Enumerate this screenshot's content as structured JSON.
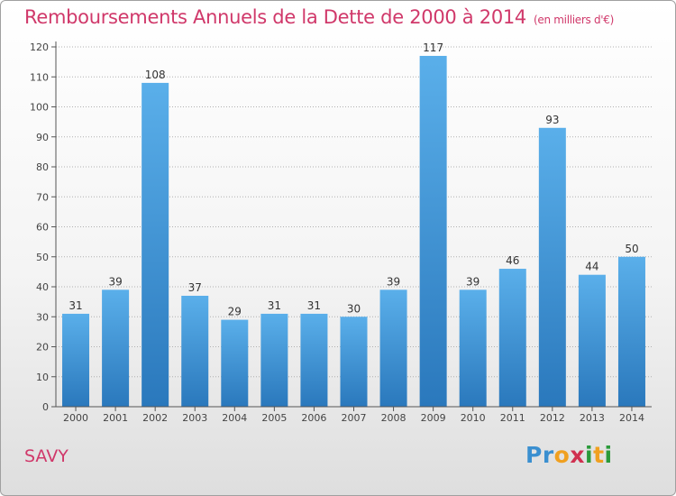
{
  "header": {
    "title": "Remboursements Annuels de la Dette de 2000 à 2014",
    "unit": "(en milliers d'€)"
  },
  "footer": {
    "place": "SAVY",
    "logo_letters": [
      "P",
      "r",
      "o",
      "x",
      "i",
      "t",
      "i"
    ]
  },
  "colors": {
    "bar_top": "#5aafea",
    "bar_bottom": "#2a78bc",
    "title": "#d0386a",
    "grid": "#b0b0b0"
  },
  "chart_data": {
    "type": "bar",
    "title": "Remboursements Annuels de la Dette de 2000 à 2014",
    "xlabel": "",
    "ylabel": "",
    "categories": [
      "2000",
      "2001",
      "2002",
      "2003",
      "2004",
      "2005",
      "2006",
      "2007",
      "2008",
      "2009",
      "2010",
      "2011",
      "2012",
      "2013",
      "2014"
    ],
    "values": [
      31,
      39,
      108,
      37,
      29,
      31,
      31,
      30,
      39,
      117,
      39,
      46,
      93,
      44,
      50
    ],
    "ylim": [
      0,
      120
    ],
    "yticks": [
      0,
      10,
      20,
      30,
      40,
      50,
      60,
      70,
      80,
      90,
      100,
      110,
      120
    ],
    "grid": "horizontal dotted",
    "data_labels": true
  }
}
